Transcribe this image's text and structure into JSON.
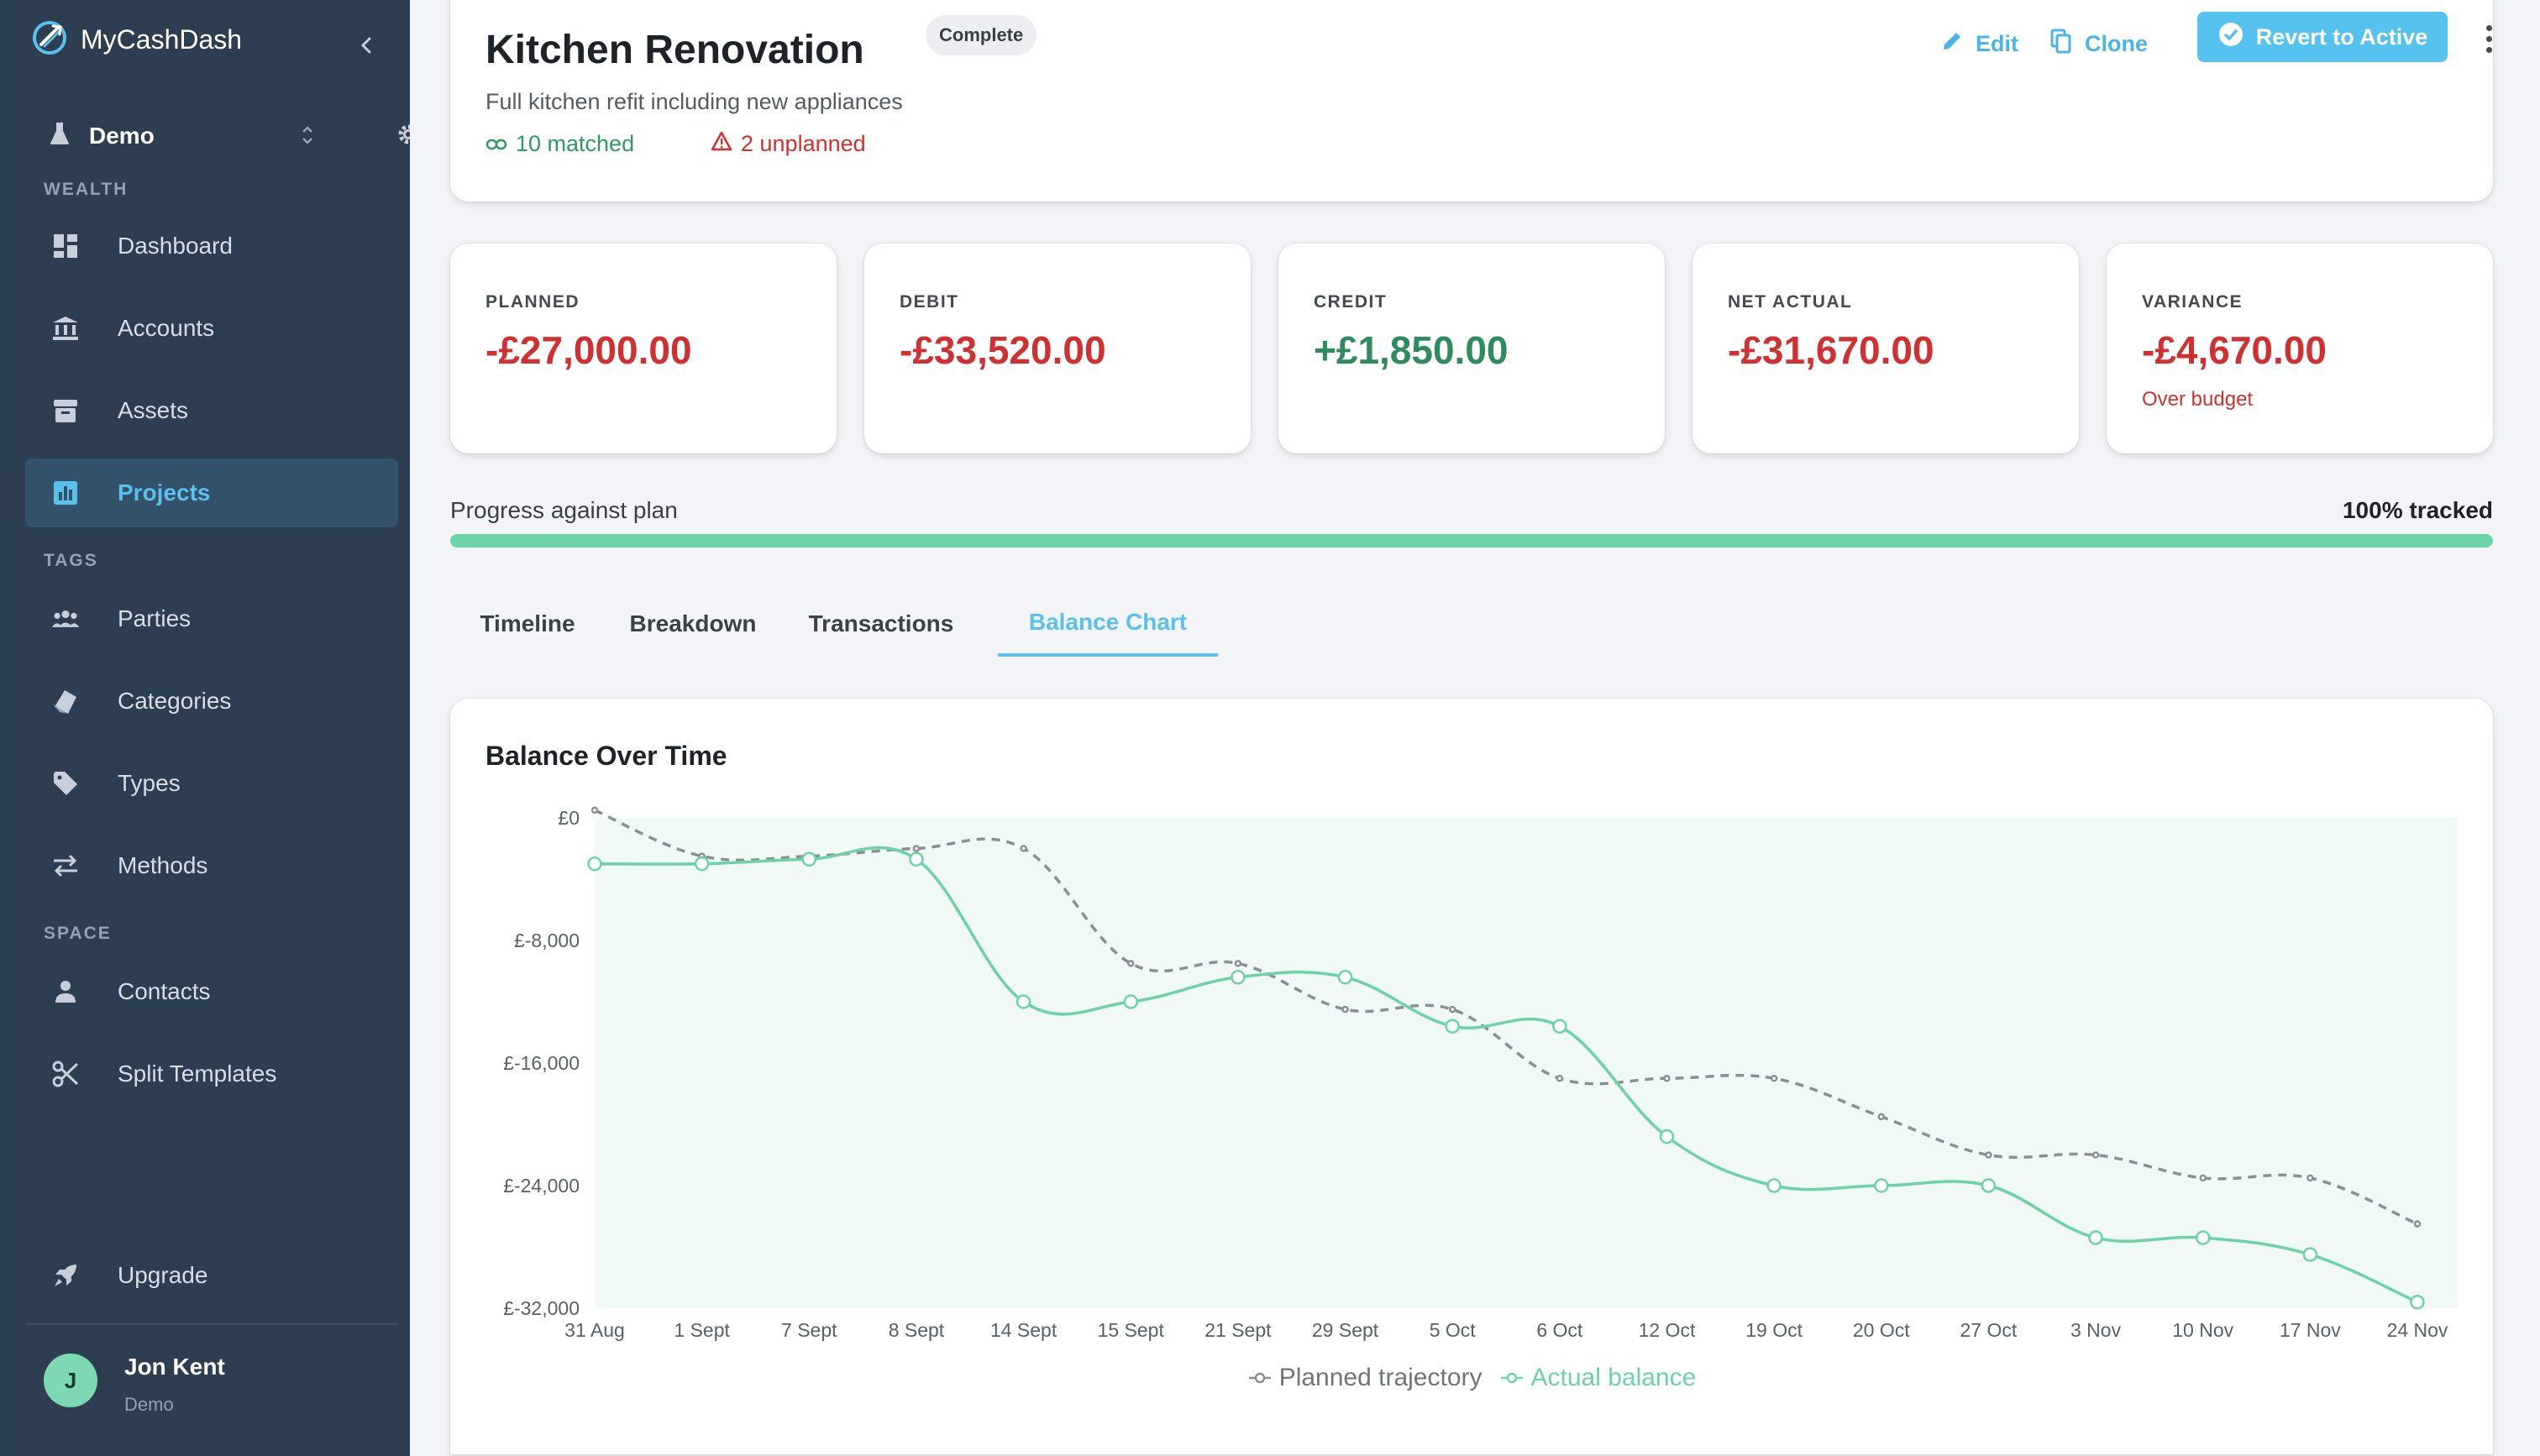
{
  "app": {
    "name": "MyCashDash"
  },
  "sidebar": {
    "workspace": "Demo",
    "sections": {
      "wealth": "WEALTH",
      "tags": "TAGS",
      "space": "SPACE"
    },
    "items": [
      {
        "label": "Dashboard",
        "icon": "dashboard-icon"
      },
      {
        "label": "Accounts",
        "icon": "bank-icon"
      },
      {
        "label": "Assets",
        "icon": "archive-icon"
      },
      {
        "label": "Projects",
        "icon": "bar-chart-icon",
        "active": true
      },
      {
        "label": "Parties",
        "icon": "group-icon"
      },
      {
        "label": "Categories",
        "icon": "category-icon"
      },
      {
        "label": "Types",
        "icon": "tag-icon"
      },
      {
        "label": "Methods",
        "icon": "swap-arrows-icon"
      },
      {
        "label": "Contacts",
        "icon": "person-icon"
      },
      {
        "label": "Split Templates",
        "icon": "scissors-icon"
      },
      {
        "label": "Upgrade",
        "icon": "rocket-icon"
      }
    ],
    "user": {
      "initial": "J",
      "name": "Jon Kent",
      "workspace": "Demo"
    }
  },
  "project": {
    "title": "Kitchen Renovation",
    "status": "Complete",
    "description": "Full kitchen refit including new appliances",
    "matched": "10 matched",
    "unplanned": "2 unplanned",
    "actions": {
      "edit": "Edit",
      "clone": "Clone",
      "revert": "Revert to Active"
    }
  },
  "stats": [
    {
      "label": "PLANNED",
      "value": "-£27,000.00",
      "tone": "neg"
    },
    {
      "label": "DEBIT",
      "value": "-£33,520.00",
      "tone": "neg"
    },
    {
      "label": "CREDIT",
      "value": "+£1,850.00",
      "tone": "pos"
    },
    {
      "label": "NET ACTUAL",
      "value": "-£31,670.00",
      "tone": "neg"
    },
    {
      "label": "VARIANCE",
      "value": "-£4,670.00",
      "tone": "neg",
      "note": "Over budget"
    }
  ],
  "progress": {
    "label": "Progress against plan",
    "percent_text": "100% tracked",
    "fraction": 1.0
  },
  "tabs": [
    {
      "label": "Timeline"
    },
    {
      "label": "Breakdown"
    },
    {
      "label": "Transactions"
    },
    {
      "label": "Balance Chart",
      "active": true
    }
  ],
  "colors": {
    "accent": "#5bc0eb",
    "planned": "#8a8f94",
    "actual": "#6cd3a9",
    "negative": "#d0302f",
    "positive": "#2e8b5e"
  },
  "chart_data": {
    "type": "line",
    "title": "Balance Over Time",
    "categories": [
      "31 Aug",
      "1 Sept",
      "7 Sept",
      "8 Sept",
      "14 Sept",
      "15 Sept",
      "21 Sept",
      "29 Sept",
      "5 Oct",
      "6 Oct",
      "12 Oct",
      "19 Oct",
      "20 Oct",
      "27 Oct",
      "3 Nov",
      "10 Nov",
      "17 Nov",
      "24 Nov"
    ],
    "y_ticks": [
      "£0",
      "£-8,000",
      "£-16,000",
      "£-24,000",
      "£-32,000"
    ],
    "ylim": [
      -32000,
      0
    ],
    "grid": false,
    "legend_position": "bottom",
    "series": [
      {
        "name": "Planned trajectory",
        "style": "dashed",
        "values": [
          500,
          -2500,
          -2500,
          -2000,
          -2000,
          -9500,
          -9500,
          -12500,
          -12500,
          -17000,
          -17000,
          -17000,
          -19500,
          -22000,
          -22000,
          -23500,
          -23500,
          -26500
        ]
      },
      {
        "name": "Actual balance",
        "style": "solid",
        "values": [
          -3000,
          -3000,
          -2700,
          -2700,
          -12000,
          -12000,
          -10400,
          -10400,
          -13600,
          -13600,
          -20800,
          -24000,
          -24000,
          -24000,
          -27400,
          -27400,
          -28500,
          -31600
        ]
      }
    ]
  }
}
